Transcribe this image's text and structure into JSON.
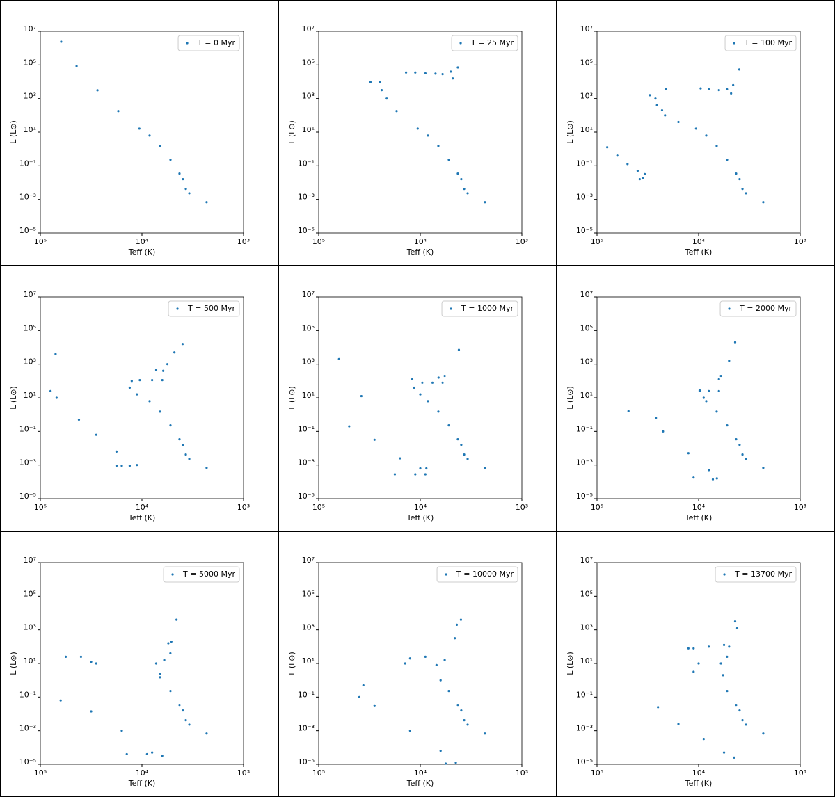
{
  "chart_data": [
    {
      "type": "scatter",
      "xlabel": "Teff (K)",
      "ylabel": "L (L⊙)",
      "xscale": "log",
      "yscale": "log",
      "legend": "upper right",
      "xlim": [
        100000,
        1000
      ],
      "ylim": [
        1e-05,
        10000000
      ],
      "xticks": [
        {
          "value": 100000,
          "label": "10⁵"
        },
        {
          "value": 10000,
          "label": "10⁴"
        },
        {
          "value": 1000,
          "label": "10³"
        }
      ],
      "yticks": [
        {
          "value": 1e-05,
          "label": "10⁻⁵"
        },
        {
          "value": 0.001,
          "label": "10⁻³"
        },
        {
          "value": 0.1,
          "label": "10⁻¹"
        },
        {
          "value": 10,
          "label": "10¹"
        },
        {
          "value": 1000,
          "label": "10³"
        },
        {
          "value": 100000,
          "label": "10⁵"
        },
        {
          "value": 10000000,
          "label": "10⁷"
        }
      ],
      "series": [
        {
          "name": "T = 0 Myr",
          "color": "#1f77b4",
          "x": [
            62400,
            44000,
            27400,
            17100,
            10600,
            8410,
            6640,
            5240,
            4270,
            3950,
            3700,
            3420,
            2310
          ],
          "values": [
            2400000,
            85000,
            3090,
            178,
            16.2,
            6.3,
            1.5,
            0.23,
            0.034,
            0.016,
            0.0042,
            0.0023,
            0.00068
          ]
        }
      ]
    },
    {
      "type": "scatter",
      "xlabel": "Teff (K)",
      "ylabel": "L (L⊙)",
      "xscale": "log",
      "yscale": "log",
      "legend": "upper right",
      "xlim": [
        100000,
        1000
      ],
      "ylim": [
        1e-05,
        10000000
      ],
      "xticks": [
        {
          "value": 100000,
          "label": "10⁵"
        },
        {
          "value": 10000,
          "label": "10⁴"
        },
        {
          "value": 1000,
          "label": "10³"
        }
      ],
      "yticks": [
        {
          "value": 1e-05,
          "label": "10⁻⁵"
        },
        {
          "value": 0.001,
          "label": "10⁻³"
        },
        {
          "value": 0.1,
          "label": "10⁻¹"
        },
        {
          "value": 10,
          "label": "10¹"
        },
        {
          "value": 1000,
          "label": "10³"
        },
        {
          "value": 100000,
          "label": "10⁵"
        },
        {
          "value": 10000000,
          "label": "10⁷"
        }
      ],
      "series": [
        {
          "name": "T = 25 Myr",
          "color": "#1f77b4",
          "x": [
            25100,
            24000,
            21400,
            17100,
            10600,
            8410,
            6640,
            5240,
            4270,
            3950,
            3700,
            3420,
            2310,
            30900,
            13800,
            11200,
            8900,
            7080,
            6030,
            5010,
            4270,
            4790
          ],
          "values": [
            9500,
            3160,
            1000,
            178,
            16.2,
            6.3,
            1.5,
            0.23,
            0.034,
            0.016,
            0.0042,
            0.0023,
            0.00068,
            9500,
            35500,
            35500,
            31600,
            30200,
            28200,
            40000,
            70800,
            15800
          ]
        }
      ]
    },
    {
      "type": "scatter",
      "xlabel": "Teff (K)",
      "ylabel": "L (L⊙)",
      "xscale": "log",
      "yscale": "log",
      "legend": "upper right",
      "xlim": [
        100000,
        1000
      ],
      "ylim": [
        1e-05,
        10000000
      ],
      "xticks": [
        {
          "value": 100000,
          "label": "10⁵"
        },
        {
          "value": 10000,
          "label": "10⁴"
        },
        {
          "value": 1000,
          "label": "10³"
        }
      ],
      "yticks": [
        {
          "value": 1e-05,
          "label": "10⁻⁵"
        },
        {
          "value": 0.001,
          "label": "10⁻³"
        },
        {
          "value": 0.1,
          "label": "10⁻¹"
        },
        {
          "value": 10,
          "label": "10¹"
        },
        {
          "value": 1000,
          "label": "10³"
        },
        {
          "value": 100000,
          "label": "10⁵"
        },
        {
          "value": 10000000,
          "label": "10⁷"
        }
      ],
      "series": [
        {
          "name": "T = 100 Myr",
          "color": "#1f77b4",
          "x": [
            26600,
            25700,
            22900,
            21400,
            15800,
            10600,
            8410,
            6640,
            5240,
            4270,
            3950,
            3700,
            3420,
            2310,
            30200,
            20900,
            9550,
            7940,
            6310,
            5250,
            4790,
            4570,
            3980,
            79400,
            63100,
            50100,
            39800,
            33900,
            35500,
            38000
          ],
          "values": [
            1000,
            400,
            200,
            100,
            40,
            16.2,
            6.3,
            1.5,
            0.23,
            0.034,
            0.016,
            0.0042,
            0.0023,
            0.00068,
            1580,
            3550,
            4000,
            3550,
            3160,
            3550,
            2000,
            6300,
            53700,
            1.26,
            0.4,
            0.126,
            0.05,
            0.032,
            0.018,
            0.016
          ]
        }
      ]
    },
    {
      "type": "scatter",
      "xlabel": "Teff (K)",
      "ylabel": "L (L⊙)",
      "xscale": "log",
      "yscale": "log",
      "legend": "upper right",
      "xlim": [
        100000,
        1000
      ],
      "ylim": [
        1e-05,
        10000000
      ],
      "xticks": [
        {
          "value": 100000,
          "label": "10⁵"
        },
        {
          "value": 10000,
          "label": "10⁴"
        },
        {
          "value": 1000,
          "label": "10³"
        }
      ],
      "yticks": [
        {
          "value": 1e-05,
          "label": "10⁻⁵"
        },
        {
          "value": 0.001,
          "label": "10⁻³"
        },
        {
          "value": 0.1,
          "label": "10⁻¹"
        },
        {
          "value": 10,
          "label": "10¹"
        },
        {
          "value": 1000,
          "label": "10³"
        },
        {
          "value": 100000,
          "label": "10⁵"
        },
        {
          "value": 10000000,
          "label": "10⁷"
        }
      ],
      "series": [
        {
          "name": "T = 500 Myr",
          "color": "#1f77b4",
          "x": [
            12600,
            13200,
            11200,
            8410,
            6640,
            5240,
            4270,
            3950,
            3700,
            3420,
            2310,
            10500,
            7940,
            6310,
            6170,
            7240,
            5620,
            4790,
            3980,
            70800,
            79400,
            69200,
            41700,
            28200,
            17800,
            11200,
            13200,
            15800,
            17800
          ],
          "values": [
            100,
            40,
            16,
            6.3,
            1.5,
            0.23,
            0.034,
            0.016,
            0.0042,
            0.0023,
            0.00068,
            112,
            112,
            112,
            400,
            450,
            1000,
            5000,
            15800,
            4000,
            25,
            10,
            0.5,
            0.063,
            0.0063,
            0.001,
            0.0009,
            0.0009,
            0.0009
          ]
        }
      ]
    },
    {
      "type": "scatter",
      "xlabel": "Teff (K)",
      "ylabel": "L (L⊙)",
      "xscale": "log",
      "yscale": "log",
      "legend": "upper right",
      "xlim": [
        100000,
        1000
      ],
      "ylim": [
        1e-05,
        10000000
      ],
      "xticks": [
        {
          "value": 100000,
          "label": "10⁵"
        },
        {
          "value": 10000,
          "label": "10⁴"
        },
        {
          "value": 1000,
          "label": "10³"
        }
      ],
      "yticks": [
        {
          "value": 1e-05,
          "label": "10⁻⁵"
        },
        {
          "value": 0.001,
          "label": "10⁻³"
        },
        {
          "value": 0.1,
          "label": "10⁻¹"
        },
        {
          "value": 10,
          "label": "10¹"
        },
        {
          "value": 1000,
          "label": "10³"
        },
        {
          "value": 100000,
          "label": "10⁵"
        },
        {
          "value": 10000000,
          "label": "10⁷"
        }
      ],
      "series": [
        {
          "name": "T = 1000 Myr",
          "color": "#1f77b4",
          "x": [
            11500,
            10000,
            8410,
            6640,
            5240,
            4270,
            3950,
            3700,
            3420,
            2310,
            12000,
            9550,
            7590,
            6030,
            5750,
            6610,
            4170,
            63100,
            38000,
            50100,
            28200,
            15800,
            10000,
            8710,
            17800,
            11200,
            8910
          ],
          "values": [
            40,
            16,
            6.3,
            1.5,
            0.23,
            0.034,
            0.016,
            0.0042,
            0.0023,
            0.00068,
            126,
            79,
            79,
            79,
            200,
            158,
            7080,
            2000,
            12.6,
            0.2,
            0.032,
            0.0025,
            0.00063,
            0.00063,
            0.00028,
            0.00028,
            0.00028
          ]
        }
      ]
    },
    {
      "type": "scatter",
      "xlabel": "Teff (K)",
      "ylabel": "L (L⊙)",
      "xscale": "log",
      "yscale": "log",
      "legend": "upper right",
      "xlim": [
        100000,
        1000
      ],
      "ylim": [
        1e-05,
        10000000
      ],
      "xticks": [
        {
          "value": 100000,
          "label": "10⁵"
        },
        {
          "value": 10000,
          "label": "10⁴"
        },
        {
          "value": 1000,
          "label": "10³"
        }
      ],
      "yticks": [
        {
          "value": 1e-05,
          "label": "10⁻⁵"
        },
        {
          "value": 0.001,
          "label": "10⁻³"
        },
        {
          "value": 0.1,
          "label": "10⁻¹"
        },
        {
          "value": 10,
          "label": "10¹"
        },
        {
          "value": 1000,
          "label": "10³"
        },
        {
          "value": 100000,
          "label": "10⁵"
        },
        {
          "value": 10000000,
          "label": "10⁷"
        }
      ],
      "series": [
        {
          "name": "T = 2000 Myr",
          "color": "#1f77b4",
          "x": [
            9770,
            8910,
            8410,
            6640,
            5240,
            4270,
            3950,
            3700,
            3420,
            2310,
            9770,
            7940,
            6310,
            6310,
            6030,
            5010,
            4370,
            49000,
            26300,
            22400,
            12600,
            7940,
            6610,
            11200,
            7240
          ],
          "values": [
            25,
            10,
            6.3,
            1.5,
            0.23,
            0.034,
            0.016,
            0.0042,
            0.0023,
            0.00068,
            28,
            25,
            25,
            126,
            200,
            1580,
            20000,
            1.6,
            0.63,
            0.1,
            0.005,
            0.0005,
            0.00016,
            0.00018,
            0.00014
          ]
        }
      ]
    },
    {
      "type": "scatter",
      "xlabel": "Teff (K)",
      "ylabel": "L (L⊙)",
      "xscale": "log",
      "yscale": "log",
      "legend": "upper right",
      "xlim": [
        100000,
        1000
      ],
      "ylim": [
        1e-05,
        10000000
      ],
      "xticks": [
        {
          "value": 100000,
          "label": "10⁵"
        },
        {
          "value": 10000,
          "label": "10⁴"
        },
        {
          "value": 1000,
          "label": "10³"
        }
      ],
      "yticks": [
        {
          "value": 1e-05,
          "label": "10⁻⁵"
        },
        {
          "value": 0.001,
          "label": "10⁻³"
        },
        {
          "value": 0.1,
          "label": "10⁻¹"
        },
        {
          "value": 10,
          "label": "10¹"
        },
        {
          "value": 1000,
          "label": "10³"
        },
        {
          "value": 100000,
          "label": "10⁵"
        },
        {
          "value": 10000000,
          "label": "10⁷"
        }
      ],
      "series": [
        {
          "name": "T = 5000 Myr",
          "color": "#1f77b4",
          "x": [
            7240,
            6030,
            5250,
            5130,
            5500,
            4570,
            6610,
            6640,
            5240,
            4270,
            3950,
            3700,
            3420,
            2310,
            56200,
            39800,
            31600,
            28200,
            63100,
            31600,
            15800,
            7940,
            6310,
            14100,
            8910
          ],
          "values": [
            10,
            16,
            40,
            200,
            158,
            4000,
            2.5,
            1.5,
            0.23,
            0.034,
            0.016,
            0.0042,
            0.0023,
            0.00068,
            25,
            25,
            12.6,
            10,
            0.063,
            0.014,
            0.001,
            5e-05,
            3.2e-05,
            4e-05,
            4e-05
          ]
        }
      ]
    },
    {
      "type": "scatter",
      "xlabel": "Teff (K)",
      "ylabel": "L (L⊙)",
      "xscale": "log",
      "yscale": "log",
      "legend": "upper right",
      "xlim": [
        100000,
        1000
      ],
      "ylim": [
        1e-05,
        10000000
      ],
      "xticks": [
        {
          "value": 100000,
          "label": "10⁵"
        },
        {
          "value": 10000,
          "label": "10⁴"
        },
        {
          "value": 1000,
          "label": "10³"
        }
      ],
      "yticks": [
        {
          "value": 1e-05,
          "label": "10⁻⁵"
        },
        {
          "value": 0.001,
          "label": "10⁻³"
        },
        {
          "value": 0.1,
          "label": "10⁻¹"
        },
        {
          "value": 10,
          "label": "10¹"
        },
        {
          "value": 1000,
          "label": "10³"
        },
        {
          "value": 100000,
          "label": "10⁵"
        },
        {
          "value": 10000000,
          "label": "10⁷"
        }
      ],
      "series": [
        {
          "name": "T = 10000 Myr",
          "color": "#1f77b4",
          "x": [
            6920,
            5750,
            4570,
            4370,
            3980,
            6310,
            5240,
            4270,
            3950,
            3700,
            3420,
            2310,
            39800,
            14100,
            12600,
            8910,
            36300,
            28200,
            12600,
            6310,
            4470,
            5620
          ],
          "values": [
            8,
            16,
            316,
            2000,
            4000,
            1,
            0.23,
            0.034,
            0.016,
            0.0042,
            0.0023,
            0.00068,
            0.1,
            10,
            20,
            25,
            0.5,
            0.032,
            0.001,
            6.3e-05,
            1.26e-05,
            1.1e-05
          ]
        }
      ]
    },
    {
      "type": "scatter",
      "xlabel": "Teff (K)",
      "ylabel": "L (L⊙)",
      "xscale": "log",
      "yscale": "log",
      "legend": "upper right",
      "xlim": [
        100000,
        1000
      ],
      "ylim": [
        1e-05,
        10000000
      ],
      "xticks": [
        {
          "value": 100000,
          "label": "10⁵"
        },
        {
          "value": 10000,
          "label": "10⁴"
        },
        {
          "value": 1000,
          "label": "10³"
        }
      ],
      "yticks": [
        {
          "value": 1e-05,
          "label": "10⁻⁵"
        },
        {
          "value": 0.001,
          "label": "10⁻³"
        },
        {
          "value": 0.1,
          "label": "10⁻¹"
        },
        {
          "value": 10,
          "label": "10¹"
        },
        {
          "value": 1000,
          "label": "10³"
        },
        {
          "value": 100000,
          "label": "10⁵"
        },
        {
          "value": 10000000,
          "label": "10⁷"
        }
      ],
      "series": [
        {
          "name": "T = 13700 Myr",
          "color": "#1f77b4",
          "x": [
            6030,
            5250,
            5010,
            4370,
            4170,
            5750,
            5240,
            4270,
            3950,
            3700,
            3420,
            2310,
            12600,
            11200,
            7940,
            5620,
            10000,
            11200,
            25100,
            15800,
            8910,
            5620,
            4470
          ],
          "values": [
            10,
            25,
            100,
            3160,
            1260,
            2,
            0.23,
            0.034,
            0.016,
            0.0042,
            0.0023,
            0.00068,
            79,
            79,
            100,
            126,
            10,
            3.2,
            0.025,
            0.0025,
            0.00032,
            5e-05,
            2.5e-05
          ]
        }
      ]
    }
  ]
}
